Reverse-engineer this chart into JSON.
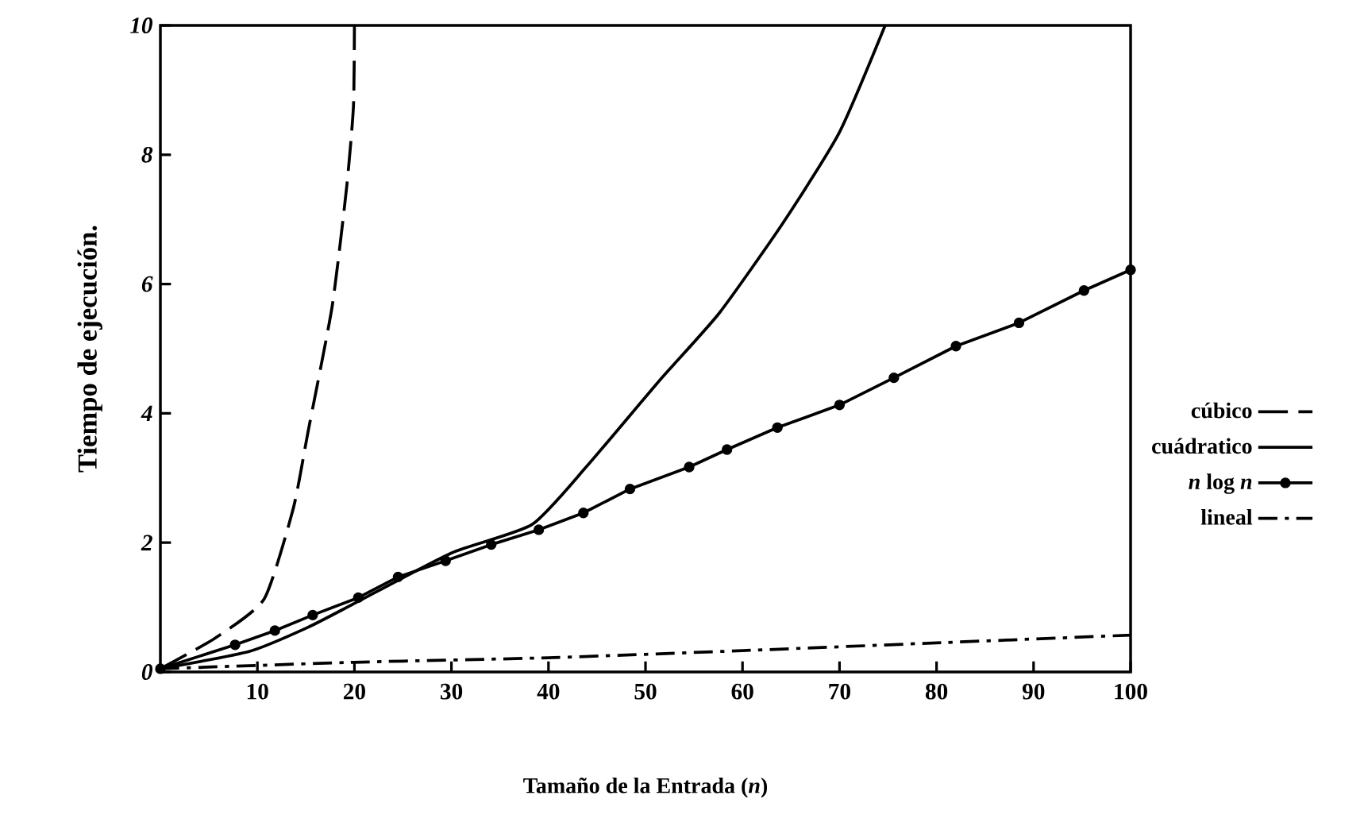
{
  "chart_data": {
    "type": "line",
    "xlabel": "Tamaño de la Entrada (*n*)",
    "ylabel": "Tiempo de ejecución.",
    "xlim": [
      0,
      100
    ],
    "ylim": [
      0,
      10
    ],
    "xticks": [
      10,
      20,
      30,
      40,
      50,
      60,
      70,
      80,
      90,
      100
    ],
    "yticks": [
      0,
      2,
      4,
      6,
      8,
      10
    ],
    "grid": false,
    "legend": "right",
    "series": [
      {
        "name": "cúbico",
        "color": "#000000",
        "line_style": "dashed",
        "marker": "none",
        "x": [
          0,
          5.6,
          10.7,
          13.7,
          15.2,
          17.7,
          19.2,
          19.9,
          20
        ],
        "values": [
          0.05,
          0.52,
          1.13,
          2.53,
          3.7,
          5.65,
          7.5,
          8.75,
          10
        ]
      },
      {
        "name": "cuádratico",
        "color": "#000000",
        "line_style": "solid",
        "marker": "none",
        "x": [
          0,
          9.2,
          15.2,
          20,
          30,
          38.3,
          44,
          51.4,
          57.6,
          64.2,
          70,
          74.7
        ],
        "values": [
          0.05,
          0.32,
          0.69,
          1.06,
          1.84,
          2.28,
          3.19,
          4.5,
          5.55,
          6.95,
          8.35,
          10
        ]
      },
      {
        "name": "*n* log *n*",
        "color": "#000000",
        "line_style": "solid",
        "marker": "circle",
        "x": [
          0,
          7.7,
          11.8,
          15.7,
          20.4,
          24.5,
          29.4,
          34.1,
          39,
          43.6,
          48.4,
          54.5,
          58.4,
          63.6,
          70,
          75.6,
          82,
          88.5,
          95.2,
          100
        ],
        "values": [
          0.05,
          0.42,
          0.64,
          0.88,
          1.15,
          1.47,
          1.72,
          1.97,
          2.2,
          2.46,
          2.83,
          3.17,
          3.44,
          3.78,
          4.13,
          4.55,
          5.04,
          5.4,
          5.9,
          6.22
        ]
      },
      {
        "name": "lineal",
        "color": "#000000",
        "line_style": "dashdot",
        "marker": "none",
        "x": [
          0,
          20,
          40,
          60,
          80,
          100
        ],
        "values": [
          0.05,
          0.15,
          0.22,
          0.33,
          0.45,
          0.57
        ]
      }
    ]
  }
}
